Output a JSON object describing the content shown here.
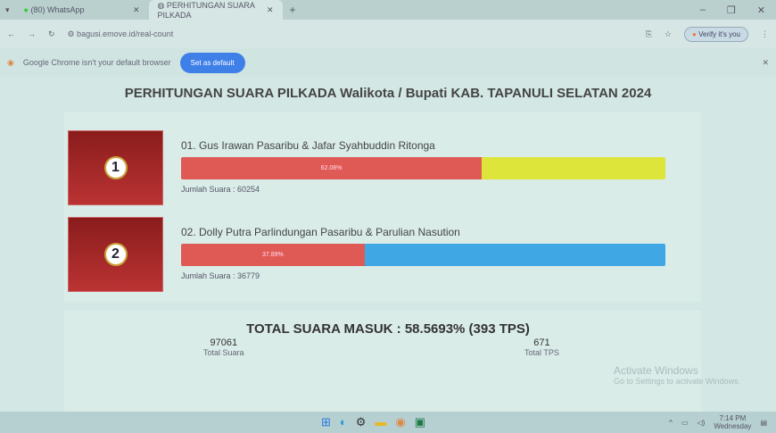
{
  "browser": {
    "tabs": [
      {
        "label": "(80) WhatsApp",
        "icon": "whatsapp-icon"
      },
      {
        "label": "PERHITUNGAN SUARA PILKADA",
        "icon": "globe-icon",
        "active": true
      }
    ],
    "url": "bagusi.emove.id/real-count",
    "verify_label": "Verify it's you",
    "infobar": {
      "message": "Google Chrome isn't your default browser",
      "button": "Set as default"
    }
  },
  "page": {
    "title": "PERHITUNGAN SUARA PILKADA Walikota / Bupati KAB. TAPANULI SELATAN 2024",
    "candidates": [
      {
        "number": "1",
        "name": "01. Gus Irawan Pasaribu & Jafar Syahbuddin Ritonga",
        "percent_label": "62.08%",
        "percent": 62.08,
        "votes_label": "Jumlah Suara : 60254",
        "fill_color": "#e05a55",
        "rest_color": "#dde43a"
      },
      {
        "number": "2",
        "name": "02. Dolly Putra Parlindungan Pasaribu & Parulian Nasution",
        "percent_label": "37.89%",
        "percent": 37.89,
        "votes_label": "Jumlah Suara : 36779",
        "fill_color": "#e05a55",
        "rest_color": "#3fa7e4"
      }
    ],
    "total_label": "TOTAL SUARA MASUK : 58.5693% (393 TPS)",
    "total_votes": "97061",
    "total_votes_label": "Total Suara",
    "total_tps": "671",
    "total_tps_label": "Total TPS"
  },
  "watermark": {
    "title": "Activate Windows",
    "subtitle": "Go to Settings to activate Windows."
  },
  "taskbar": {
    "time": "7:14 PM",
    "day": "Wednesday"
  }
}
